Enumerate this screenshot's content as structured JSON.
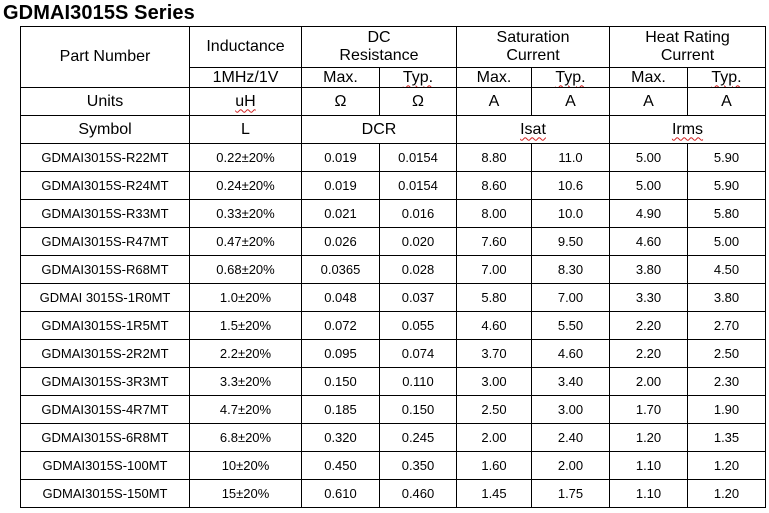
{
  "title": "GDMAI3015S Series",
  "header": {
    "part_number": "Part Number",
    "inductance": "Inductance",
    "inductance_cond": "1MHz/1V",
    "dc_line1": "DC",
    "dc_line2": "Resistance",
    "sat_line1": "Saturation",
    "sat_line2": "Current",
    "heat_line1": "Heat Rating",
    "heat_line2": "Current",
    "max": "Max.",
    "typ": "Typ."
  },
  "units": {
    "label": "Units",
    "inductance": "uH",
    "dcr_max": "Ω",
    "dcr_typ": "Ω",
    "isat_max": "A",
    "isat_typ": "A",
    "irms_max": "A",
    "irms_typ": "A"
  },
  "symbol": {
    "label": "Symbol",
    "inductance": "L",
    "dcr": "DCR",
    "isat": "Isat",
    "irms": "Irms"
  },
  "rows": [
    [
      "GDMAI3015S-R22MT",
      "0.22±20%",
      "0.019",
      "0.0154",
      "8.80",
      "11.0",
      "5.00",
      "5.90"
    ],
    [
      "GDMAI3015S-R24MT",
      "0.24±20%",
      "0.019",
      "0.0154",
      "8.60",
      "10.6",
      "5.00",
      "5.90"
    ],
    [
      "GDMAI3015S-R33MT",
      "0.33±20%",
      "0.021",
      "0.016",
      "8.00",
      "10.0",
      "4.90",
      "5.80"
    ],
    [
      "GDMAI3015S-R47MT",
      "0.47±20%",
      "0.026",
      "0.020",
      "7.60",
      "9.50",
      "4.60",
      "5.00"
    ],
    [
      "GDMAI3015S-R68MT",
      "0.68±20%",
      "0.0365",
      "0.028",
      "7.00",
      "8.30",
      "3.80",
      "4.50"
    ],
    [
      "GDMAI 3015S-1R0MT",
      "1.0±20%",
      "0.048",
      "0.037",
      "5.80",
      "7.00",
      "3.30",
      "3.80"
    ],
    [
      "GDMAI3015S-1R5MT",
      "1.5±20%",
      "0.072",
      "0.055",
      "4.60",
      "5.50",
      "2.20",
      "2.70"
    ],
    [
      "GDMAI3015S-2R2MT",
      "2.2±20%",
      "0.095",
      "0.074",
      "3.70",
      "4.60",
      "2.20",
      "2.50"
    ],
    [
      "GDMAI3015S-3R3MT",
      "3.3±20%",
      "0.150",
      "0.110",
      "3.00",
      "3.40",
      "2.00",
      "2.30"
    ],
    [
      "GDMAI3015S-4R7MT",
      "4.7±20%",
      "0.185",
      "0.150",
      "2.50",
      "3.00",
      "1.70",
      "1.90"
    ],
    [
      "GDMAI3015S-6R8MT",
      "6.8±20%",
      "0.320",
      "0.245",
      "2.00",
      "2.40",
      "1.20",
      "1.35"
    ],
    [
      "GDMAI3015S-100MT",
      "10±20%",
      "0.450",
      "0.350",
      "1.60",
      "2.00",
      "1.10",
      "1.20"
    ],
    [
      "GDMAI3015S-150MT",
      "15±20%",
      "0.610",
      "0.460",
      "1.45",
      "1.75",
      "1.10",
      "1.20"
    ]
  ]
}
